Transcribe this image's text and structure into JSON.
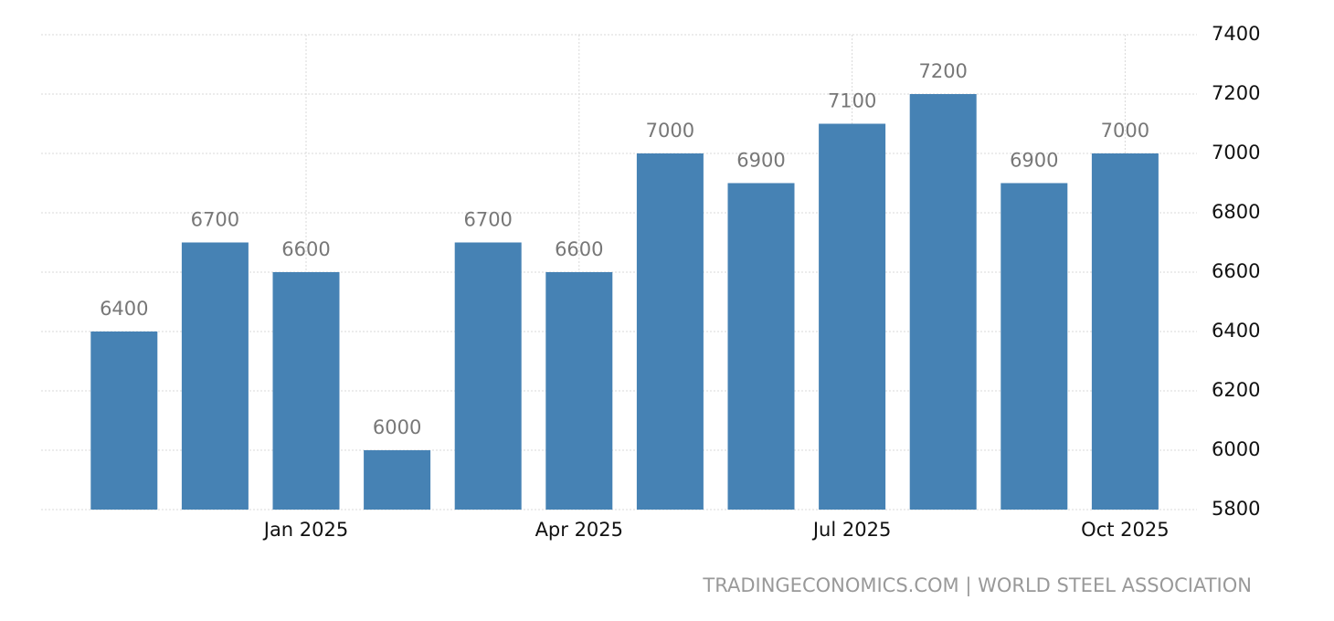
{
  "chart_data": {
    "type": "bar",
    "categories": [
      null,
      null,
      "Jan 2025",
      null,
      null,
      "Apr 2025",
      null,
      null,
      "Jul 2025",
      null,
      null,
      "Oct 2025"
    ],
    "values": [
      6400,
      6700,
      6600,
      6000,
      6700,
      6600,
      7000,
      6900,
      7100,
      7200,
      6900,
      7000
    ],
    "color": "#4682b4",
    "ylim": [
      5800,
      7400
    ],
    "yticks": [
      5800,
      6000,
      6200,
      6400,
      6600,
      6800,
      7000,
      7200,
      7400
    ],
    "grid": true,
    "y_axis_side": "right",
    "source": "TRADINGECONOMICS.COM | WORLD STEEL ASSOCIATION"
  }
}
